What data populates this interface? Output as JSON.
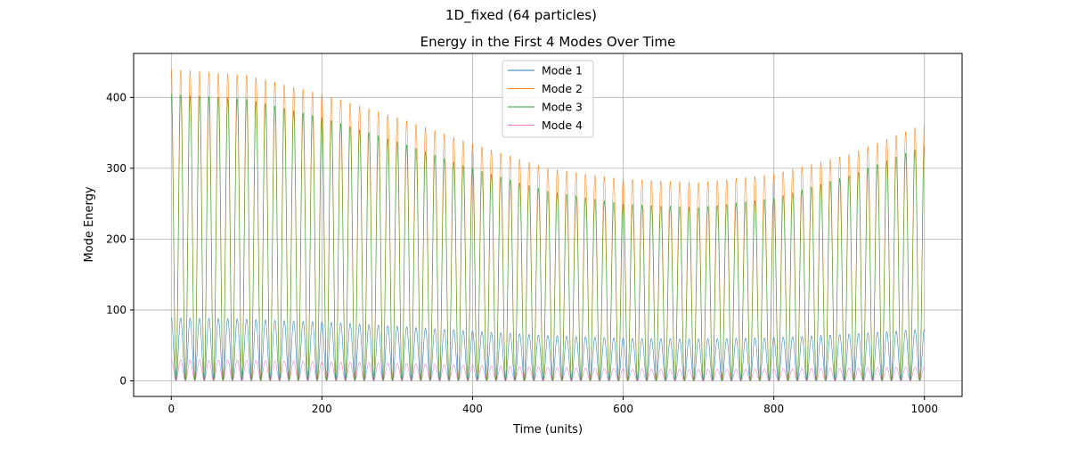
{
  "figure": {
    "suptitle": "1D_fixed (64 particles)"
  },
  "chart_data": {
    "type": "line",
    "title": "Energy in the First 4 Modes Over Time",
    "xlabel": "Time (units)",
    "ylabel": "Mode Energy",
    "xlim": [
      -50,
      1050
    ],
    "ylim": [
      -22,
      462
    ],
    "xticks": [
      0,
      200,
      400,
      600,
      800,
      1000
    ],
    "yticks": [
      0,
      100,
      200,
      300,
      400
    ],
    "grid": true,
    "legend": "upper-center",
    "oscillation_period": 12.5,
    "series": [
      {
        "name": "Mode 1",
        "color": "#1f77b4",
        "envelope": {
          "t": [
            0,
            100,
            200,
            300,
            400,
            500,
            600,
            700,
            800,
            900,
            1000
          ],
          "peak": [
            89,
            87,
            83,
            77,
            70,
            64,
            60,
            59,
            61,
            66,
            73
          ]
        }
      },
      {
        "name": "Mode 2",
        "color": "#ff7f0e",
        "envelope": {
          "t": [
            0,
            100,
            200,
            300,
            400,
            500,
            600,
            700,
            800,
            900,
            1000
          ],
          "peak": [
            440,
            432,
            405,
            372,
            335,
            300,
            285,
            280,
            292,
            320,
            363
          ]
        }
      },
      {
        "name": "Mode 3",
        "color": "#2ca02c",
        "envelope": {
          "t": [
            0,
            100,
            200,
            300,
            400,
            500,
            600,
            700,
            800,
            900,
            1000
          ],
          "peak": [
            405,
            398,
            372,
            338,
            300,
            268,
            250,
            245,
            258,
            290,
            332
          ]
        }
      },
      {
        "name": "Mode 4",
        "color": "#e377c2",
        "envelope": {
          "t": [
            0,
            100,
            200,
            300,
            400,
            500,
            600,
            700,
            800,
            900,
            1000
          ],
          "peak": [
            30,
            29,
            27,
            25,
            22,
            19,
            17,
            16,
            17,
            18,
            20
          ]
        }
      }
    ]
  }
}
